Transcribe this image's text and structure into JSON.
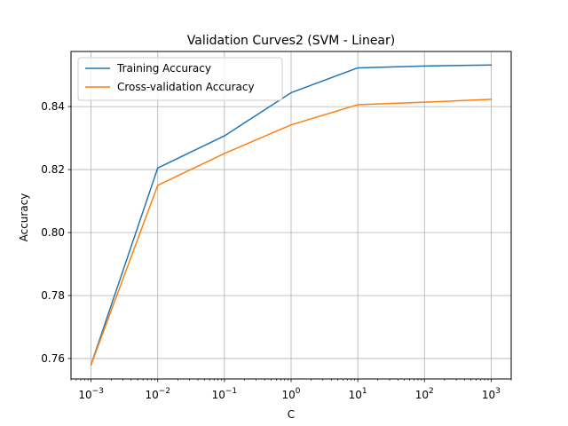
{
  "chart_data": {
    "type": "line",
    "title": "Validation Curves2 (SVM - Linear)",
    "xlabel": "C",
    "ylabel": "Accuracy",
    "x": [
      0.001,
      0.01,
      0.1,
      1,
      10,
      100,
      1000
    ],
    "xscale": "log",
    "xlim": [
      0.0005,
      2000
    ],
    "ylim": [
      0.7535,
      0.8575
    ],
    "xticks": [
      {
        "value": 0.001,
        "base": "10",
        "exp": "−3"
      },
      {
        "value": 0.01,
        "base": "10",
        "exp": "−2"
      },
      {
        "value": 0.1,
        "base": "10",
        "exp": "−1"
      },
      {
        "value": 1,
        "base": "10",
        "exp": "0"
      },
      {
        "value": 10,
        "base": "10",
        "exp": "1"
      },
      {
        "value": 100,
        "base": "10",
        "exp": "2"
      },
      {
        "value": 1000,
        "base": "10",
        "exp": "3"
      }
    ],
    "yticks": [
      {
        "value": 0.76,
        "label": "0.76"
      },
      {
        "value": 0.78,
        "label": "0.78"
      },
      {
        "value": 0.8,
        "label": "0.80"
      },
      {
        "value": 0.82,
        "label": "0.82"
      },
      {
        "value": 0.84,
        "label": "0.84"
      }
    ],
    "grid": true,
    "legend_position": "top-left",
    "series": [
      {
        "name": "Training Accuracy",
        "color": "#1f77b4",
        "values": [
          0.758,
          0.8205,
          0.8307,
          0.8444,
          0.8523,
          0.8529,
          0.8532
        ]
      },
      {
        "name": "Cross-validation Accuracy",
        "color": "#ff7f0e",
        "values": [
          0.758,
          0.815,
          0.8251,
          0.8342,
          0.8406,
          0.8414,
          0.8423
        ]
      }
    ]
  }
}
